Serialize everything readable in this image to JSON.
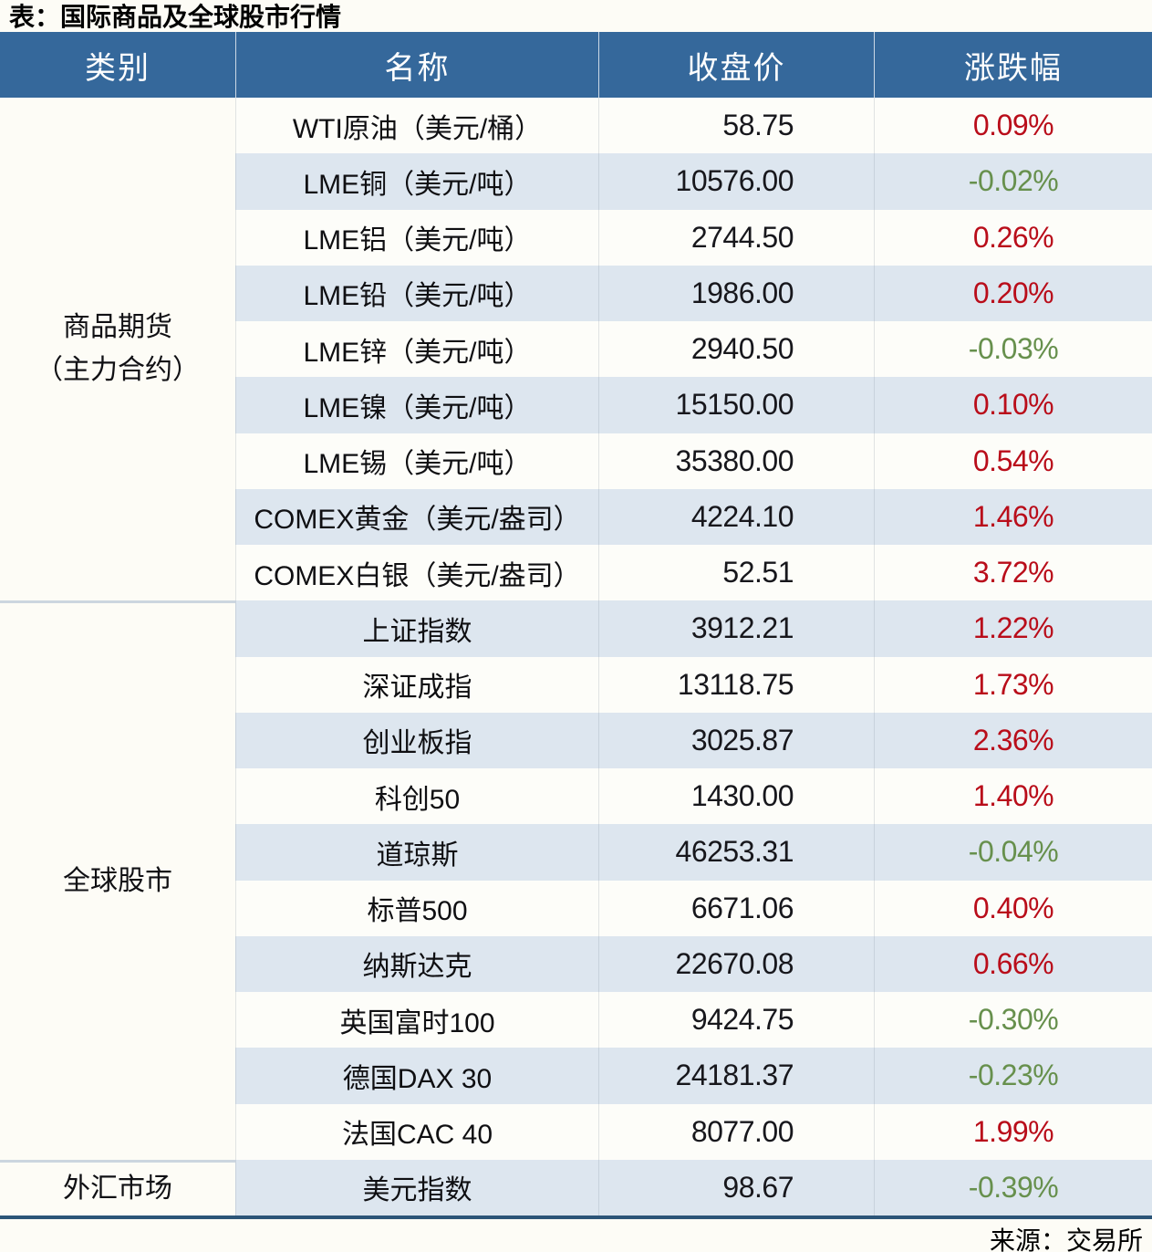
{
  "title": "表：国际商品及全球股市行情",
  "source": "来源：交易所",
  "colors": {
    "header_bg": "#35689b",
    "stripe_bg": "#dde6ef",
    "row_bg": "#fdfdf9",
    "page_bg": "#fdfcf6",
    "up_color": "#b90d1a",
    "down_color": "#67904d",
    "bottom_border": "#2c5578",
    "group_divider": "#ccd6df"
  },
  "table": {
    "headers": [
      "类别",
      "名称",
      "收盘价",
      "涨跌幅"
    ],
    "groups": [
      {
        "label": "商品期货\n（主力合约）",
        "rows": [
          {
            "name": "WTI原油（美元/桶）",
            "close": "58.75",
            "change": "0.09%",
            "direction": "up"
          },
          {
            "name": "LME铜（美元/吨）",
            "close": "10576.00",
            "change": "-0.02%",
            "direction": "down"
          },
          {
            "name": "LME铝（美元/吨）",
            "close": "2744.50",
            "change": "0.26%",
            "direction": "up"
          },
          {
            "name": "LME铅（美元/吨）",
            "close": "1986.00",
            "change": "0.20%",
            "direction": "up"
          },
          {
            "name": "LME锌（美元/吨）",
            "close": "2940.50",
            "change": "-0.03%",
            "direction": "down"
          },
          {
            "name": "LME镍（美元/吨）",
            "close": "15150.00",
            "change": "0.10%",
            "direction": "up"
          },
          {
            "name": "LME锡（美元/吨）",
            "close": "35380.00",
            "change": "0.54%",
            "direction": "up"
          },
          {
            "name": "COMEX黄金（美元/盎司）",
            "close": "4224.10",
            "change": "1.46%",
            "direction": "up"
          },
          {
            "name": "COMEX白银（美元/盎司）",
            "close": "52.51",
            "change": "3.72%",
            "direction": "up"
          }
        ]
      },
      {
        "label": "全球股市",
        "rows": [
          {
            "name": "上证指数",
            "close": "3912.21",
            "change": "1.22%",
            "direction": "up"
          },
          {
            "name": "深证成指",
            "close": "13118.75",
            "change": "1.73%",
            "direction": "up"
          },
          {
            "name": "创业板指",
            "close": "3025.87",
            "change": "2.36%",
            "direction": "up"
          },
          {
            "name": "科创50",
            "close": "1430.00",
            "change": "1.40%",
            "direction": "up"
          },
          {
            "name": "道琼斯",
            "close": "46253.31",
            "change": "-0.04%",
            "direction": "down"
          },
          {
            "name": "标普500",
            "close": "6671.06",
            "change": "0.40%",
            "direction": "up"
          },
          {
            "name": "纳斯达克",
            "close": "22670.08",
            "change": "0.66%",
            "direction": "up"
          },
          {
            "name": "英国富时100",
            "close": "9424.75",
            "change": "-0.30%",
            "direction": "down"
          },
          {
            "name": "德国DAX 30",
            "close": "24181.37",
            "change": "-0.23%",
            "direction": "down"
          },
          {
            "name": "法国CAC 40",
            "close": "8077.00",
            "change": "1.99%",
            "direction": "up"
          }
        ]
      },
      {
        "label": "外汇市场",
        "rows": [
          {
            "name": "美元指数",
            "close": "98.67",
            "change": "-0.39%",
            "direction": "down"
          }
        ]
      }
    ]
  }
}
